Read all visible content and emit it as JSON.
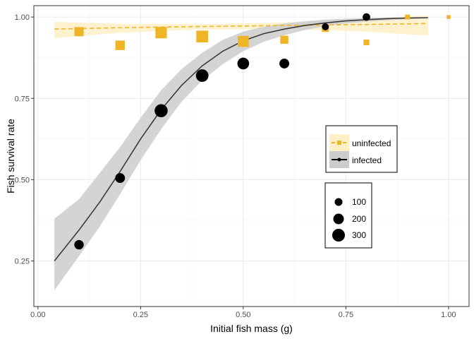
{
  "chart_data": {
    "type": "scatter",
    "xlabel": "Initial fish mass (g)",
    "ylabel": "Fish survival rate",
    "xlim": [
      -0.01,
      1.05
    ],
    "ylim": [
      0.11,
      1.035
    ],
    "x_ticks": [
      0.0,
      0.25,
      0.5,
      0.75,
      1.0
    ],
    "x_tick_labels": [
      "0.00",
      "0.25",
      "0.50",
      "0.75",
      "1.00"
    ],
    "y_ticks": [
      0.25,
      0.5,
      0.75,
      1.0
    ],
    "y_tick_labels": [
      "0.25",
      "0.50",
      "0.75",
      "1.00"
    ],
    "grid": true,
    "colors": {
      "uninfected": "#f0b429",
      "uninfected_ribbon": "#fdefc6",
      "infected": "#000000",
      "infected_line": "#3a3a3a",
      "infected_ribbon": "#cccccc"
    },
    "series": [
      {
        "name": "uninfected",
        "marker": "square",
        "line_style": "dashed",
        "points": [
          {
            "x": 0.1,
            "y": 0.955,
            "n": 130
          },
          {
            "x": 0.2,
            "y": 0.913,
            "n": 140
          },
          {
            "x": 0.3,
            "y": 0.952,
            "n": 230
          },
          {
            "x": 0.4,
            "y": 0.94,
            "n": 250
          },
          {
            "x": 0.5,
            "y": 0.925,
            "n": 210
          },
          {
            "x": 0.6,
            "y": 0.93,
            "n": 90
          },
          {
            "x": 0.7,
            "y": 0.965,
            "n": 60
          },
          {
            "x": 0.8,
            "y": 0.922,
            "n": 30
          },
          {
            "x": 0.9,
            "y": 1.0,
            "n": 15
          },
          {
            "x": 1.0,
            "y": 1.0,
            "n": 5
          }
        ],
        "fit": {
          "x": [
            0.04,
            0.2,
            0.4,
            0.6,
            0.8,
            0.95
          ],
          "y": [
            0.963,
            0.967,
            0.971,
            0.974,
            0.977,
            0.98
          ],
          "lower": [
            0.935,
            0.952,
            0.962,
            0.964,
            0.955,
            0.943
          ],
          "upper": [
            0.985,
            0.979,
            0.978,
            0.983,
            0.995,
            1.005
          ]
        }
      },
      {
        "name": "infected",
        "marker": "circle",
        "line_style": "solid",
        "points": [
          {
            "x": 0.1,
            "y": 0.3,
            "n": 80
          },
          {
            "x": 0.2,
            "y": 0.505,
            "n": 90
          },
          {
            "x": 0.3,
            "y": 0.712,
            "n": 200
          },
          {
            "x": 0.4,
            "y": 0.82,
            "n": 180
          },
          {
            "x": 0.5,
            "y": 0.857,
            "n": 150
          },
          {
            "x": 0.6,
            "y": 0.857,
            "n": 90
          },
          {
            "x": 0.7,
            "y": 0.97,
            "n": 30
          },
          {
            "x": 0.8,
            "y": 1.0,
            "n": 40
          }
        ],
        "fit": {
          "x": [
            0.04,
            0.1,
            0.15,
            0.2,
            0.25,
            0.3,
            0.35,
            0.4,
            0.45,
            0.5,
            0.55,
            0.6,
            0.65,
            0.7,
            0.75,
            0.8,
            0.85,
            0.9,
            0.95
          ],
          "y": [
            0.25,
            0.345,
            0.43,
            0.525,
            0.625,
            0.715,
            0.79,
            0.85,
            0.895,
            0.927,
            0.949,
            0.963,
            0.974,
            0.982,
            0.988,
            0.992,
            0.995,
            0.997,
            0.998
          ],
          "lower": [
            0.16,
            0.265,
            0.355,
            0.455,
            0.56,
            0.655,
            0.74,
            0.805,
            0.855,
            0.895,
            0.924,
            0.944,
            0.96,
            0.972,
            0.98,
            0.986,
            0.99,
            0.993,
            0.995
          ],
          "upper": [
            0.38,
            0.44,
            0.52,
            0.6,
            0.69,
            0.775,
            0.84,
            0.89,
            0.93,
            0.955,
            0.97,
            0.98,
            0.987,
            0.992,
            0.995,
            0.997,
            0.998,
            0.999,
            1.0
          ]
        }
      }
    ],
    "size_legend": {
      "values": [
        100,
        200,
        300
      ],
      "labels": [
        "100",
        "200",
        "300"
      ]
    },
    "legend_placement": "right-middle"
  }
}
